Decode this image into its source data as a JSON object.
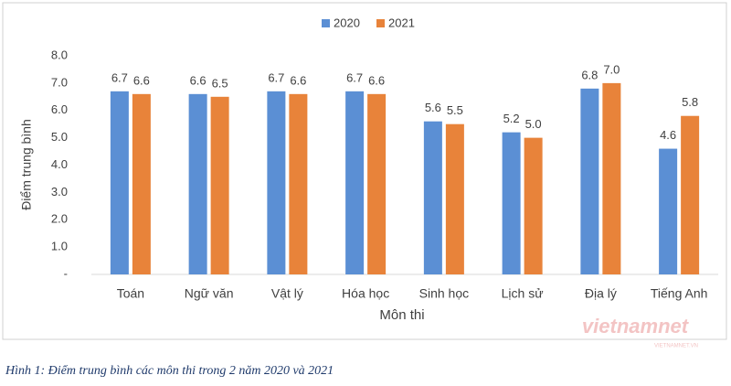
{
  "chart_data": {
    "type": "bar",
    "categories": [
      "Toán",
      "Ngữ văn",
      "Vật lý",
      "Hóa học",
      "Sinh học",
      "Lịch sử",
      "Địa lý",
      "Tiếng Anh"
    ],
    "series": [
      {
        "name": "2020",
        "color": "#5b8fd4",
        "values": [
          6.7,
          6.6,
          6.7,
          6.7,
          5.6,
          5.2,
          6.8,
          4.6
        ],
        "value_labels": [
          "6.7",
          "6.6",
          "6.7",
          "6.7",
          "5.6",
          "5.2",
          "6.8",
          "4.6"
        ]
      },
      {
        "name": "2021",
        "color": "#e8833a",
        "values": [
          6.6,
          6.5,
          6.6,
          6.6,
          5.5,
          5.0,
          7.0,
          5.8
        ],
        "value_labels": [
          "6.6",
          "6.5",
          "6.6",
          "6.6",
          "5.5",
          "5.0",
          "7.0",
          "5.8"
        ]
      }
    ],
    "ylim": [
      0,
      8
    ],
    "yticks": [
      {
        "value": 0,
        "label": "-"
      },
      {
        "value": 1,
        "label": "1.0"
      },
      {
        "value": 2,
        "label": "2.0"
      },
      {
        "value": 3,
        "label": "3.0"
      },
      {
        "value": 4,
        "label": "4.0"
      },
      {
        "value": 5,
        "label": "5.0"
      },
      {
        "value": 6,
        "label": "6.0"
      },
      {
        "value": 7,
        "label": "7.0"
      },
      {
        "value": 8,
        "label": "8.0"
      }
    ],
    "y_label": "Điểm trung bình",
    "x_label": "Môn thi",
    "legend": "top",
    "grid": false,
    "watermark": "vietnamnet",
    "watermark_sub": "VIETNAMNET.VN",
    "caption": "Hình 1: Điểm trung bình các môn thi trong 2 năm 2020 và 2021"
  }
}
